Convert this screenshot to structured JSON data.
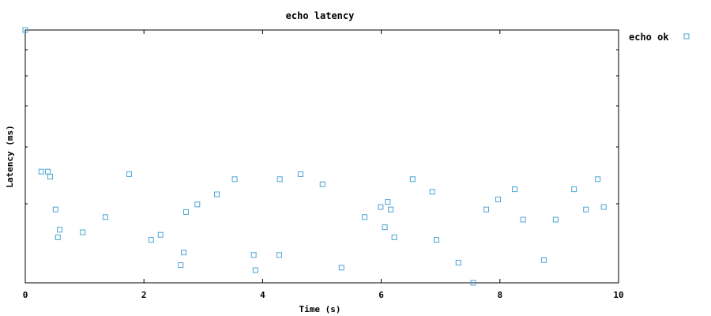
{
  "chart_data": {
    "type": "scatter",
    "title": "echo latency",
    "xlabel": "Time (s)",
    "ylabel": "Latency (ms)",
    "xlim": [
      0,
      10
    ],
    "ylim": [
      0,
      1
    ],
    "xticks": [
      0,
      2,
      4,
      6,
      8,
      10
    ],
    "yticks_labeled": false,
    "grid": false,
    "legend_position": "top-right-outside",
    "series": [
      {
        "name": "echo ok",
        "color": "#4ba3d6",
        "marker": "square-open",
        "x": [
          0.0,
          0.27,
          0.38,
          0.42,
          0.51,
          0.55,
          0.58,
          0.97,
          1.35,
          1.75,
          2.12,
          2.28,
          2.62,
          2.67,
          2.71,
          2.9,
          3.23,
          3.53,
          3.85,
          3.88,
          4.28,
          4.29,
          4.64,
          5.01,
          5.33,
          5.72,
          5.99,
          6.06,
          6.11,
          6.16,
          6.22,
          6.53,
          6.86,
          6.93,
          7.3,
          7.55,
          7.77,
          7.97,
          8.25,
          8.39,
          8.74,
          8.94,
          9.25,
          9.45,
          9.65,
          9.75
        ],
        "y": [
          1.0,
          0.44,
          0.44,
          0.42,
          0.29,
          0.18,
          0.21,
          0.2,
          0.26,
          0.43,
          0.17,
          0.19,
          0.07,
          0.12,
          0.28,
          0.31,
          0.35,
          0.41,
          0.11,
          0.05,
          0.11,
          0.41,
          0.43,
          0.39,
          0.06,
          0.26,
          0.3,
          0.22,
          0.32,
          0.29,
          0.18,
          0.41,
          0.36,
          0.17,
          0.08,
          0.0,
          0.29,
          0.33,
          0.37,
          0.25,
          0.09,
          0.25,
          0.37,
          0.29,
          0.41,
          0.3
        ]
      }
    ]
  }
}
